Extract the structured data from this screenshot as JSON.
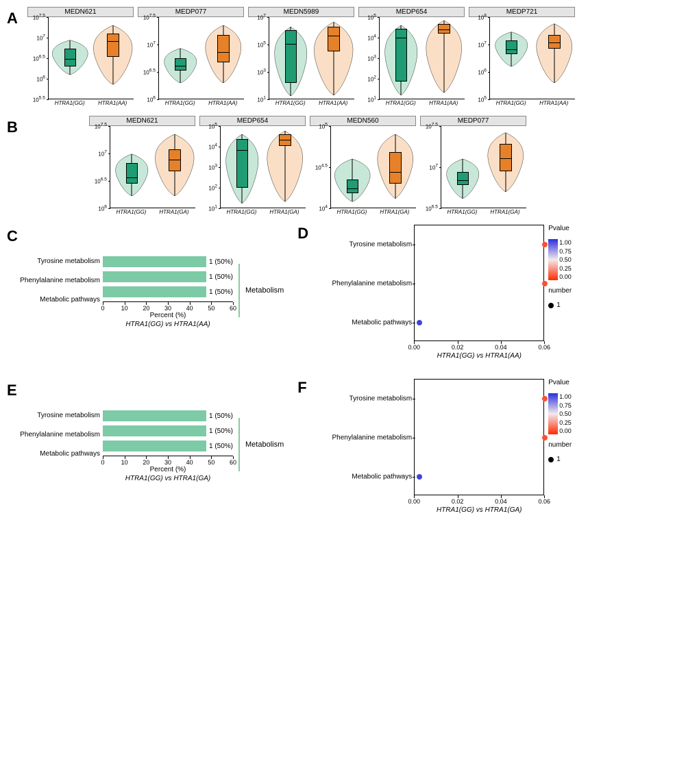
{
  "colors": {
    "violin_gg_fill": "#c7e8d8",
    "violin_gg_box": "#1f9c73",
    "violin_aa_fill": "#fadfc6",
    "violin_aa_box": "#e6812a",
    "bar_fill": "#7dcaa6",
    "bracket": "#85cd9f",
    "pval_top": "#2b2fdd",
    "pval_mid": "#f3e9ec",
    "pval_bot": "#ff2a00"
  },
  "fontsizes": {
    "panel_label": 22,
    "violin_title": 10,
    "violin_tick": 8,
    "violin_xlabel": 8,
    "bar_label": 10,
    "dot_label": 10
  },
  "panelA": {
    "label": "A",
    "x_labels": [
      "HTRA1(GG)",
      "HTRA1(AA)"
    ],
    "plots": [
      {
        "title": "MEDN621",
        "yticks": [
          "10^7.5",
          "10^7",
          "10^6.5",
          "10^6",
          "10^5.5"
        ],
        "gg": {
          "q1": 0.4,
          "med": 0.5,
          "q3": 0.62,
          "wlo": 0.3,
          "whi": 0.72,
          "vw": 0.55
        },
        "aa": {
          "q1": 0.52,
          "med": 0.72,
          "q3": 0.8,
          "wlo": 0.18,
          "whi": 0.9,
          "vw": 0.6
        }
      },
      {
        "title": "MEDP077",
        "yticks": [
          "10^7.5",
          "10^7",
          "10^6.5",
          "10^6"
        ],
        "gg": {
          "q1": 0.35,
          "med": 0.42,
          "q3": 0.5,
          "wlo": 0.2,
          "whi": 0.62,
          "vw": 0.5
        },
        "aa": {
          "q1": 0.45,
          "med": 0.58,
          "q3": 0.78,
          "wlo": 0.2,
          "whi": 0.9,
          "vw": 0.55
        }
      },
      {
        "title": "MEDN5989",
        "yticks": [
          "10^7",
          "10^5",
          "10^3",
          "10^1"
        ],
        "gg": {
          "q1": 0.2,
          "med": 0.68,
          "q3": 0.84,
          "wlo": 0.04,
          "whi": 0.88,
          "vw": 0.5
        },
        "aa": {
          "q1": 0.58,
          "med": 0.78,
          "q3": 0.88,
          "wlo": 0.05,
          "whi": 0.94,
          "vw": 0.6
        }
      },
      {
        "title": "MEDP654",
        "yticks": [
          "10^5",
          "10^4",
          "10^3",
          "10^2",
          "10^1"
        ],
        "gg": {
          "q1": 0.22,
          "med": 0.76,
          "q3": 0.86,
          "wlo": 0.05,
          "whi": 0.9,
          "vw": 0.5
        },
        "aa": {
          "q1": 0.8,
          "med": 0.86,
          "q3": 0.92,
          "wlo": 0.08,
          "whi": 0.96,
          "vw": 0.55
        }
      },
      {
        "title": "MEDP721",
        "yticks": [
          "10^8",
          "10^7",
          "10^6",
          "10^5"
        ],
        "gg": {
          "q1": 0.55,
          "med": 0.62,
          "q3": 0.72,
          "wlo": 0.4,
          "whi": 0.82,
          "vw": 0.5
        },
        "aa": {
          "q1": 0.62,
          "med": 0.7,
          "q3": 0.78,
          "wlo": 0.2,
          "whi": 0.92,
          "vw": 0.55
        }
      }
    ]
  },
  "panelB": {
    "label": "B",
    "x_labels": [
      "HTRA1(GG)",
      "HTRA1(GA)"
    ],
    "plots": [
      {
        "title": "MEDN621",
        "yticks": [
          "10^7.5",
          "10^7",
          "10^6.5",
          "10^6"
        ],
        "gg": {
          "q1": 0.3,
          "med": 0.38,
          "q3": 0.55,
          "wlo": 0.15,
          "whi": 0.66,
          "vw": 0.5
        },
        "aa": {
          "q1": 0.45,
          "med": 0.6,
          "q3": 0.72,
          "wlo": 0.15,
          "whi": 0.9,
          "vw": 0.6
        }
      },
      {
        "title": "MEDP654",
        "yticks": [
          "10^5",
          "10^4",
          "10^3",
          "10^2",
          "10^1"
        ],
        "gg": {
          "q1": 0.25,
          "med": 0.72,
          "q3": 0.84,
          "wlo": 0.06,
          "whi": 0.9,
          "vw": 0.5
        },
        "aa": {
          "q1": 0.76,
          "med": 0.84,
          "q3": 0.9,
          "wlo": 0.08,
          "whi": 0.94,
          "vw": 0.55
        }
      },
      {
        "title": "MEDN560",
        "yticks": [
          "10^5",
          "10^4.5",
          "10^4"
        ],
        "gg": {
          "q1": 0.18,
          "med": 0.25,
          "q3": 0.35,
          "wlo": 0.08,
          "whi": 0.6,
          "vw": 0.55
        },
        "aa": {
          "q1": 0.3,
          "med": 0.45,
          "q3": 0.68,
          "wlo": 0.12,
          "whi": 0.9,
          "vw": 0.55
        }
      },
      {
        "title": "MEDP077",
        "yticks": [
          "10^7.5",
          "10^7",
          "10^6.5"
        ],
        "gg": {
          "q1": 0.28,
          "med": 0.35,
          "q3": 0.44,
          "wlo": 0.12,
          "whi": 0.6,
          "vw": 0.5
        },
        "aa": {
          "q1": 0.45,
          "med": 0.62,
          "q3": 0.78,
          "wlo": 0.2,
          "whi": 0.92,
          "vw": 0.55
        }
      }
    ]
  },
  "panelC": {
    "label": "C",
    "categories": [
      "Tyrosine metabolism",
      "Phenylalanine metabolism",
      "Metabolic pathways"
    ],
    "values": [
      50,
      50,
      50
    ],
    "value_labels": [
      "1 (50%)",
      "1 (50%)",
      "1 (50%)"
    ],
    "xlim": [
      0,
      60
    ],
    "xticks": [
      0,
      10,
      20,
      30,
      40,
      50,
      60
    ],
    "xlabel": "Percent (%)",
    "sublabel": "HTRA1(GG)  vs  HTRA1(AA)",
    "group_label": "Metabolism"
  },
  "panelD": {
    "label": "D",
    "ycats": [
      "Tyrosine metabolism",
      "Phenylalanine metabolism",
      "Metabolic pathways"
    ],
    "points": [
      {
        "y": 0,
        "x": 0.06,
        "pvalue": 0.1,
        "size": 8
      },
      {
        "y": 1,
        "x": 0.06,
        "pvalue": 0.1,
        "size": 8
      },
      {
        "y": 2,
        "x": 0.002,
        "pvalue": 0.95,
        "size": 8
      }
    ],
    "xlim": [
      0.0,
      0.06
    ],
    "xticks": [
      0.0,
      0.02,
      0.04,
      0.06
    ],
    "xlabel": "HTRA1(GG)  vs  HTRA1(AA)",
    "legend": {
      "pvalue_title": "Pvalue",
      "pvalue_ticks": [
        "1.00",
        "0.75",
        "0.50",
        "0.25",
        "0.00"
      ],
      "number_title": "number",
      "number_value": "1"
    }
  },
  "panelE": {
    "label": "E",
    "categories": [
      "Tyrosine metabolism",
      "Phenylalanine metabolism",
      "Metabolic pathways"
    ],
    "values": [
      50,
      50,
      50
    ],
    "value_labels": [
      "1 (50%)",
      "1 (50%)",
      "1 (50%)"
    ],
    "xlim": [
      0,
      60
    ],
    "xticks": [
      0,
      10,
      20,
      30,
      40,
      50,
      60
    ],
    "xlabel": "Percent (%)",
    "sublabel": "HTRA1(GG)  vs  HTRA1(GA)",
    "group_label": "Metabolism"
  },
  "panelF": {
    "label": "F",
    "ycats": [
      "Tyrosine metabolism",
      "Phenylalanine metabolism",
      "Metabolic pathways"
    ],
    "points": [
      {
        "y": 0,
        "x": 0.06,
        "pvalue": 0.1,
        "size": 8
      },
      {
        "y": 1,
        "x": 0.06,
        "pvalue": 0.1,
        "size": 8
      },
      {
        "y": 2,
        "x": 0.002,
        "pvalue": 0.95,
        "size": 8
      }
    ],
    "xlim": [
      0.0,
      0.06
    ],
    "xticks": [
      0.0,
      0.02,
      0.04,
      0.06
    ],
    "xlabel": "HTRA1(GG)  vs  HTRA1(GA)",
    "legend": {
      "pvalue_title": "Pvalue",
      "pvalue_ticks": [
        "1.00",
        "0.75",
        "0.50",
        "0.25",
        "0.00"
      ],
      "number_title": "number",
      "number_value": "1"
    }
  }
}
